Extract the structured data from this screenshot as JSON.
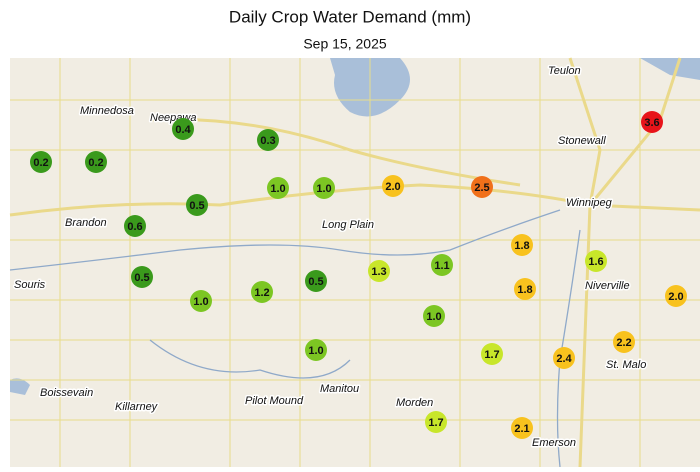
{
  "title": "Daily Crop Water Demand (mm)",
  "subtitle": "Sep 15, 2025",
  "places": [
    "Teulon",
    "Minnedosa",
    "Neepawa",
    "Stonewall",
    "Winnipeg",
    "Brandon",
    "Long Plain",
    "Niverville",
    "Souris",
    "St. Malo",
    "Boissevain",
    "Killarney",
    "Pilot Mound",
    "Manitou",
    "Morden",
    "Emerson"
  ],
  "stations": {
    "values": [
      0.4,
      0.3,
      0.2,
      0.2,
      1.0,
      1.0,
      2.0,
      2.5,
      3.6,
      0.5,
      0.6,
      1.8,
      1.6,
      1.3,
      1.1,
      0.5,
      1.0,
      1.2,
      0.5,
      1.8,
      2.0,
      1.0,
      2.2,
      1.0,
      1.7,
      2.4,
      1.7,
      2.1
    ],
    "value_labels": [
      "0.4",
      "0.3",
      "0.2",
      "0.2",
      "1.0",
      "1.0",
      "2.0",
      "2.5",
      "3.6",
      "0.5",
      "0.6",
      "1.8",
      "1.6",
      "1.3",
      "1.1",
      "0.5",
      "1.0",
      "1.2",
      "0.5",
      "1.8",
      "2.0",
      "1.0",
      "2.2",
      "1.0",
      "1.7",
      "2.4",
      "1.7",
      "2.1"
    ]
  }
}
